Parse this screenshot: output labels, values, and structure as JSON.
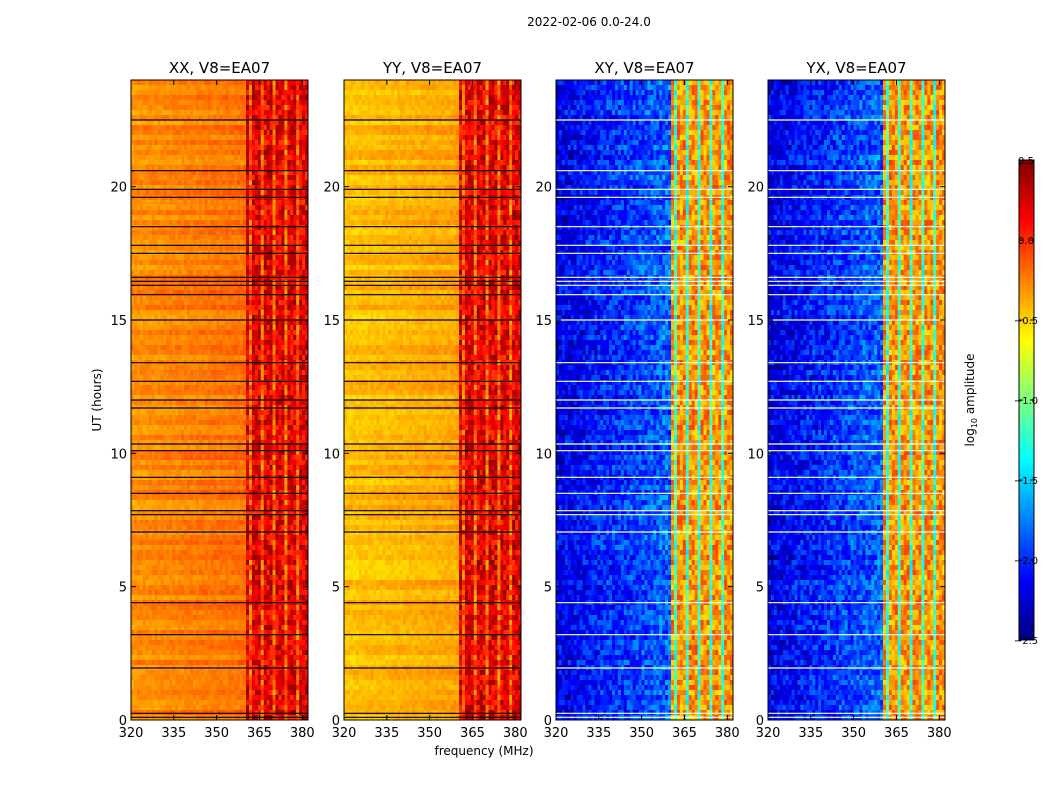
{
  "figure": {
    "title": "2022-02-06 0.0-24.0",
    "xlabel": "frequency (MHz)",
    "ylabel": "UT (hours)"
  },
  "colors": {
    "jet": [
      "#00007f",
      "#0000ff",
      "#007fff",
      "#00ffff",
      "#7fff7f",
      "#ffff00",
      "#ff7f00",
      "#ff0000",
      "#7f0000"
    ],
    "frame": "#000000",
    "flag_line_dark": "#000000",
    "flag_line_light": "#ffffff"
  },
  "chart_data": [
    {
      "type": "heatmap",
      "title": "XX, V8=EA07",
      "polarization": "XX",
      "xlim": [
        320,
        382
      ],
      "ylim": [
        0,
        24
      ],
      "xticks": [
        "320",
        "335",
        "350",
        "365",
        "380"
      ],
      "yticks": [
        "0",
        "5",
        "10",
        "15",
        "20"
      ],
      "regime": "parallel",
      "baseline_log_amp": -0.3,
      "band_start_mhz": 360,
      "band_log_amp": 0.2,
      "flag_style": "dark",
      "flagged_ut": [
        0.1,
        0.25,
        1.95,
        3.2,
        4.4,
        7.05,
        7.7,
        7.85,
        8.5,
        9.1,
        10.1,
        10.35,
        11.7,
        12.0,
        12.7,
        13.4,
        15.0,
        15.95,
        16.3,
        16.45,
        16.6,
        17.5,
        17.8,
        18.5,
        19.6,
        19.9,
        20.6,
        22.5
      ]
    },
    {
      "type": "heatmap",
      "title": "YY, V8=EA07",
      "polarization": "YY",
      "xlim": [
        320,
        382
      ],
      "ylim": [
        0,
        24
      ],
      "xticks": [
        "320",
        "335",
        "350",
        "365",
        "380"
      ],
      "yticks": [
        "0",
        "5",
        "10",
        "15",
        "20"
      ],
      "regime": "parallel",
      "baseline_log_amp": -0.45,
      "band_start_mhz": 360,
      "band_log_amp": 0.2,
      "flag_style": "dark",
      "flagged_ut": [
        0.1,
        0.25,
        1.95,
        3.2,
        4.4,
        7.05,
        7.7,
        7.85,
        8.5,
        9.1,
        10.1,
        10.35,
        11.7,
        12.0,
        12.7,
        13.4,
        15.0,
        15.95,
        16.3,
        16.45,
        16.6,
        17.5,
        17.8,
        18.5,
        19.6,
        19.9,
        20.6,
        22.5
      ]
    },
    {
      "type": "heatmap",
      "title": "XY, V8=EA07",
      "polarization": "XY",
      "xlim": [
        320,
        382
      ],
      "ylim": [
        0,
        24
      ],
      "xticks": [
        "320",
        "335",
        "350",
        "365",
        "380"
      ],
      "yticks": [
        "0",
        "5",
        "10",
        "15",
        "20"
      ],
      "regime": "cross",
      "baseline_log_amp": -2.2,
      "band_start_mhz": 360,
      "band_log_amp": -0.3,
      "flag_style": "light",
      "flagged_ut": [
        0.1,
        0.25,
        1.95,
        3.2,
        4.4,
        7.05,
        7.7,
        7.85,
        8.5,
        9.1,
        10.1,
        10.35,
        11.7,
        12.0,
        12.7,
        13.4,
        15.0,
        15.95,
        16.3,
        16.45,
        16.6,
        17.5,
        17.8,
        18.5,
        19.6,
        19.9,
        20.6,
        22.5
      ]
    },
    {
      "type": "heatmap",
      "title": "YX, V8=EA07",
      "polarization": "YX",
      "xlim": [
        320,
        382
      ],
      "ylim": [
        0,
        24
      ],
      "xticks": [
        "320",
        "335",
        "350",
        "365",
        "380"
      ],
      "yticks": [
        "0",
        "5",
        "10",
        "15",
        "20"
      ],
      "regime": "cross",
      "baseline_log_amp": -2.2,
      "band_start_mhz": 360,
      "band_log_amp": -0.3,
      "flag_style": "light",
      "flagged_ut": [
        0.1,
        0.25,
        1.95,
        3.2,
        4.4,
        7.05,
        7.7,
        7.85,
        8.5,
        9.1,
        10.1,
        10.35,
        11.7,
        12.0,
        12.7,
        13.4,
        15.0,
        15.95,
        16.3,
        16.45,
        16.6,
        17.5,
        17.8,
        18.5,
        19.6,
        19.9,
        20.6,
        22.5
      ]
    }
  ],
  "colorbar": {
    "range": [
      -2.5,
      0.5
    ],
    "ticks": [
      "0.5",
      "0.0",
      "−0.5",
      "−1.0",
      "−1.5",
      "−2.0",
      "−2.5"
    ],
    "tick_values": [
      0.5,
      0.0,
      -0.5,
      -1.0,
      -1.5,
      -2.0,
      -2.5
    ],
    "label_prefix": "log",
    "label_subscript": "10",
    "label_suffix": " amplitude"
  }
}
